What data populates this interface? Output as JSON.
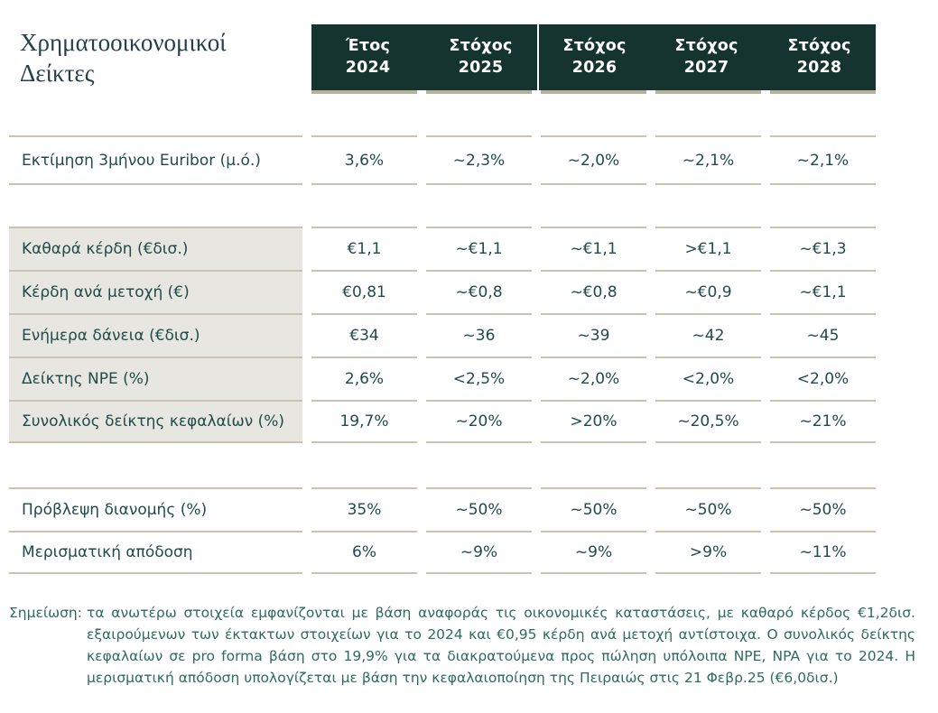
{
  "title": "Χρηματοοικονομικοί Δείκτες",
  "columns": [
    {
      "type": "Έτος",
      "year": "2024"
    },
    {
      "type": "Στόχος",
      "year": "2025"
    },
    {
      "type": "Στόχος",
      "year": "2026"
    },
    {
      "type": "Στόχος",
      "year": "2027"
    },
    {
      "type": "Στόχος",
      "year": "2028"
    }
  ],
  "groups": [
    {
      "rows": [
        {
          "label": "Εκτίμηση 3μήνου Euribor (μ.ό.)",
          "values": [
            "3,6%",
            "~2,3%",
            "~2,0%",
            "~2,1%",
            "~2,1%"
          ]
        }
      ]
    },
    {
      "rows": [
        {
          "label": "Καθαρά κέρδη (€δισ.)",
          "values": [
            "€1,1",
            "~€1,1",
            "~€1,1",
            ">€1,1",
            "~€1,3"
          ]
        },
        {
          "label": "Κέρδη ανά μετοχή (€)",
          "values": [
            "€0,81",
            "~€0,8",
            "~€0,8",
            "~€0,9",
            "~€1,1"
          ]
        },
        {
          "label": "Ενήμερα δάνεια (€δισ.)",
          "values": [
            "€34",
            "~36",
            "~39",
            "~42",
            "~45"
          ]
        },
        {
          "label": "Δείκτης NPE (%)",
          "values": [
            "2,6%",
            "<2,5%",
            "~2,0%",
            "<2,0%",
            "<2,0%"
          ]
        },
        {
          "label": "Συνολικός δείκτης κεφαλαίων (%)",
          "values": [
            "19,7%",
            "~20%",
            ">20%",
            "~20,5%",
            "~21%"
          ]
        }
      ]
    },
    {
      "rows": [
        {
          "label": "Πρόβλεψη διανομής (%)",
          "values": [
            "35%",
            "~50%",
            "~50%",
            "~50%",
            "~50%"
          ]
        },
        {
          "label": "Μερισματική απόδοση",
          "values": [
            "6%",
            "~9%",
            "~9%",
            ">9%",
            "~11%"
          ]
        }
      ]
    }
  ],
  "footnote": {
    "label": "Σημείωση:",
    "text": "τα ανωτέρω στοιχεία εμφανίζονται με βάση αναφοράς τις οικονομικές καταστάσεις, με καθαρό κέρδος €1,2δισ. εξαιρούμενων των έκτακτων στοιχείων για το 2024 και €0,95 κέρδη ανά μετοχή αντίστοιχα. Ο συνολικός δείκτης κεφαλαίων σε pro forma βάση στο 19,9% για τα διακρατούμενα προς πώληση υπόλοιπα NPE, NPA για το 2024. Η μερισματική απόδοση υπολογίζεται με βάση την κεφαλαιοποίηση της Πειραιώς στις 21 Φεβρ.25 (€6,0δισ.)"
  },
  "colors": {
    "header_bg": "#15342f",
    "header_text": "#ffffff",
    "rule": "#c9c3b2",
    "header_underline": "#b7b19c",
    "shaded_label_bg": "#e8e6e0",
    "body_text": "#1f4b49",
    "title_text": "#24404a",
    "footnote_text": "#2e6b5e"
  },
  "chart_data": {
    "type": "table",
    "title": "Χρηματοοικονομικοί Δείκτες",
    "columns": [
      "",
      "Έτος 2024",
      "Στόχος 2025",
      "Στόχος 2026",
      "Στόχος 2027",
      "Στόχος 2028"
    ],
    "rows": [
      [
        "Εκτίμηση 3μήνου Euribor (μ.ό.)",
        "3,6%",
        "~2,3%",
        "~2,0%",
        "~2,1%",
        "~2,1%"
      ],
      [
        "Καθαρά κέρδη (€δισ.)",
        "€1,1",
        "~€1,1",
        "~€1,1",
        ">€1,1",
        "~€1,3"
      ],
      [
        "Κέρδη ανά μετοχή (€)",
        "€0,81",
        "~€0,8",
        "~€0,8",
        "~€0,9",
        "~€1,1"
      ],
      [
        "Ενήμερα δάνεια (€δισ.)",
        "€34",
        "~36",
        "~39",
        "~42",
        "~45"
      ],
      [
        "Δείκτης NPE (%)",
        "2,6%",
        "<2,5%",
        "~2,0%",
        "<2,0%",
        "<2,0%"
      ],
      [
        "Συνολικός δείκτης κεφαλαίων (%)",
        "19,7%",
        "~20%",
        ">20%",
        "~20,5%",
        "~21%"
      ],
      [
        "Πρόβλεψη διανομής (%)",
        "35%",
        "~50%",
        "~50%",
        "~50%",
        "~50%"
      ],
      [
        "Μερισματική απόδοση",
        "6%",
        "~9%",
        "~9%",
        ">9%",
        "~11%"
      ]
    ]
  }
}
